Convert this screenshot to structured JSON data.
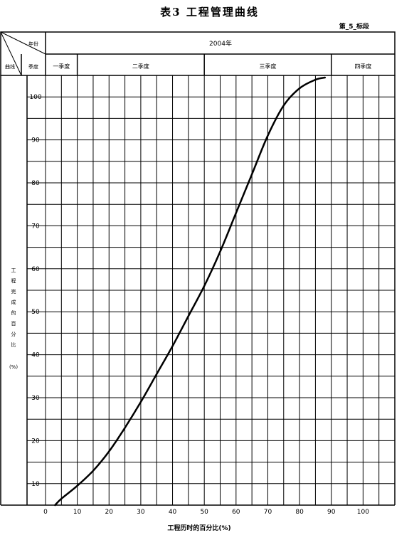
{
  "header": {
    "title": "表3  工程管理曲线",
    "subtitle": "第_5_标段",
    "corner_top": "年份",
    "corner_left": "曲线",
    "corner_mid": "季度"
  },
  "chart_data": {
    "type": "line",
    "year_label": "2004年",
    "quarters": [
      "一季度",
      "二季度",
      "三季度",
      "四季度"
    ],
    "ylabel": "工程完成的百分比",
    "ylabel_unit": "(%)",
    "xlabel": "工程历时的百分比(%)",
    "xlim": [
      0,
      110
    ],
    "ylim": [
      5,
      105
    ],
    "x_ticks": [
      0,
      10,
      20,
      30,
      40,
      50,
      60,
      70,
      80,
      90,
      100
    ],
    "y_ticks": [
      10,
      20,
      30,
      40,
      50,
      60,
      70,
      80,
      90,
      100
    ],
    "grid": true,
    "series": [
      {
        "x": [
          3,
          5,
          10,
          15,
          20,
          25,
          30,
          35,
          40,
          45,
          50,
          55,
          60,
          65,
          70,
          75,
          80,
          85,
          88
        ],
        "y": [
          5,
          6.5,
          9.5,
          13,
          17.5,
          23,
          29,
          35.5,
          42,
          49,
          56,
          64,
          73,
          82,
          91,
          98,
          102,
          104,
          104.5
        ]
      }
    ]
  }
}
